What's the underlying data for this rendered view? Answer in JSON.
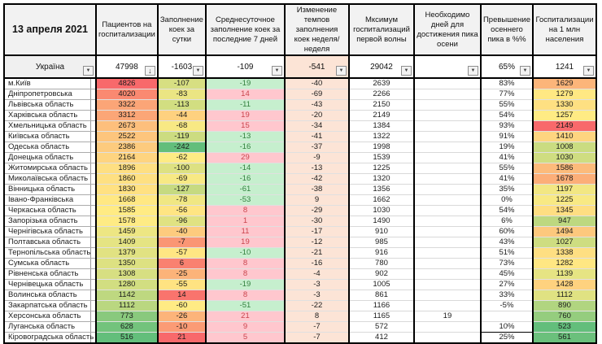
{
  "table": {
    "date_title": "13 апреля 2021",
    "headers": [
      "Пациентов на госпитализации",
      "Заполнение коек за сутки",
      "Среднесуточное заполнение коек за последние 7 дней",
      "Изменение темпов заполнения коек неделя/неделя",
      "Мксимум госпитализаций первой волны",
      "Необходимо дней для достижения пика осени",
      "Превышение осеннего пика в %%",
      "Госпитализации на 1 млн населения"
    ],
    "ukraine": {
      "name": "Україна",
      "patients": "47998",
      "beds": "-1603",
      "avg7": "-109",
      "week": "-541",
      "max": "29042",
      "days": "",
      "pct": "65%",
      "hosp": "1241"
    },
    "icons": {
      "dropdown": "▼",
      "sort_desc": "↓"
    },
    "colors": {
      "peach": "#FCE4D6",
      "good_bg": "#C6EFCE",
      "good_text": "#33803F",
      "bad_bg": "#FFC7CE",
      "bad_text": "#C9444D",
      "header_bg": "#F2F2F2",
      "scale_green": "#63BE7B",
      "scale_yellow": "#FFEB84",
      "scale_red": "#F8696B"
    },
    "rows": [
      {
        "name": "м.Київ",
        "patients": "4826",
        "p_bg": "#F8696B",
        "beds": "-107",
        "b_bg": "#D7DF82",
        "avg7": "-19",
        "week": "-40",
        "max": "2639",
        "days": "",
        "pct": "83%",
        "hosp": "1629",
        "h_bg": "#FCB57A"
      },
      {
        "name": "Дніпропетровська",
        "patients": "4020",
        "p_bg": "#FA8971",
        "beds": "-83",
        "b_bg": "#EBE583",
        "avg7": "14",
        "week": "-69",
        "max": "2266",
        "days": "",
        "pct": "77%",
        "hosp": "1279",
        "h_bg": "#FFE883"
      },
      {
        "name": "Львівська область",
        "patients": "3322",
        "p_bg": "#FBA577",
        "beds": "-113",
        "b_bg": "#D2DE81",
        "avg7": "-11",
        "week": "-43",
        "max": "2150",
        "days": "",
        "pct": "55%",
        "hosp": "1330",
        "h_bg": "#FEE082"
      },
      {
        "name": "Харківська область",
        "patients": "3312",
        "p_bg": "#FBA677",
        "beds": "-44",
        "b_bg": "#FED17F",
        "avg7": "19",
        "week": "-20",
        "max": "2149",
        "days": "",
        "pct": "54%",
        "hosp": "1257",
        "h_bg": "#FFEB84"
      },
      {
        "name": "Хмельницька область",
        "patients": "2673",
        "p_bg": "#FDBF7C",
        "beds": "-68",
        "b_bg": "#F8E984",
        "avg7": "15",
        "week": "-34",
        "max": "1384",
        "days": "",
        "pct": "93%",
        "hosp": "2149",
        "h_bg": "#F8696B"
      },
      {
        "name": "Київська область",
        "patients": "2522",
        "p_bg": "#FDC57D",
        "beds": "-119",
        "b_bg": "#CCDC81",
        "avg7": "-13",
        "week": "-41",
        "max": "1322",
        "days": "",
        "pct": "91%",
        "hosp": "1410",
        "h_bg": "#FED580"
      },
      {
        "name": "Одеська область",
        "patients": "2386",
        "p_bg": "#FDCB7E",
        "beds": "-242",
        "b_bg": "#63BE7B",
        "avg7": "-16",
        "week": "-37",
        "max": "1998",
        "days": "",
        "pct": "19%",
        "hosp": "1008",
        "h_bg": "#CADC81"
      },
      {
        "name": "Донецька область",
        "patients": "2164",
        "p_bg": "#FED480",
        "beds": "-62",
        "b_bg": "#FDEB84",
        "avg7": "29",
        "week": "-9",
        "max": "1539",
        "days": "",
        "pct": "41%",
        "hosp": "1030",
        "h_bg": "#CFDD81"
      },
      {
        "name": "Житомирська область",
        "patients": "1896",
        "p_bg": "#FEDF82",
        "beds": "-100",
        "b_bg": "#DDE182",
        "avg7": "-14",
        "week": "-13",
        "max": "1225",
        "days": "",
        "pct": "55%",
        "hosp": "1586",
        "h_bg": "#FCBB7B"
      },
      {
        "name": "Миколаївська область",
        "patients": "1860",
        "p_bg": "#FEE082",
        "beds": "-69",
        "b_bg": "#F7E984",
        "avg7": "-16",
        "week": "-42",
        "max": "1320",
        "days": "",
        "pct": "41%",
        "hosp": "1678",
        "h_bg": "#FCAE78"
      },
      {
        "name": "Вінницька область",
        "patients": "1830",
        "p_bg": "#FFE182",
        "beds": "-127",
        "b_bg": "#C6DA81",
        "avg7": "-61",
        "week": "-38",
        "max": "1356",
        "days": "",
        "pct": "35%",
        "hosp": "1197",
        "h_bg": "#F2E783"
      },
      {
        "name": "Івано-Франківська",
        "patients": "1668",
        "p_bg": "#FFE883",
        "beds": "-78",
        "b_bg": "#F0E783",
        "avg7": "-53",
        "week": "9",
        "max": "1662",
        "days": "",
        "pct": "0%",
        "hosp": "1225",
        "h_bg": "#F8E984"
      },
      {
        "name": "Черкаська область",
        "patients": "1585",
        "p_bg": "#FFEB84",
        "beds": "-56",
        "b_bg": "#FFE583",
        "avg7": "8",
        "week": "-29",
        "max": "1030",
        "days": "",
        "pct": "54%",
        "hosp": "1345",
        "h_bg": "#FEDE82"
      },
      {
        "name": "Запорізька область",
        "patients": "1578",
        "p_bg": "#FEEB84",
        "beds": "-96",
        "b_bg": "#E0E282",
        "avg7": "1",
        "week": "-30",
        "max": "1490",
        "days": "",
        "pct": "6%",
        "hosp": "947",
        "h_bg": "#BDD880"
      },
      {
        "name": "Чернігівська область",
        "patients": "1459",
        "p_bg": "#EDE683",
        "beds": "-40",
        "b_bg": "#FDCB7E",
        "avg7": "11",
        "week": "-17",
        "max": "910",
        "days": "",
        "pct": "60%",
        "hosp": "1494",
        "h_bg": "#FDC87D"
      },
      {
        "name": "Полтавська область",
        "patients": "1409",
        "p_bg": "#E5E483",
        "beds": "-7",
        "b_bg": "#FA9674",
        "avg7": "19",
        "week": "-12",
        "max": "985",
        "days": "",
        "pct": "43%",
        "hosp": "1027",
        "h_bg": "#CEDD81"
      },
      {
        "name": "Тернопільська область",
        "patients": "1379",
        "p_bg": "#E1E282",
        "beds": "-57",
        "b_bg": "#FFE683",
        "avg7": "-10",
        "week": "-21",
        "max": "916",
        "days": "",
        "pct": "51%",
        "hosp": "1338",
        "h_bg": "#FEDF82"
      },
      {
        "name": "Сумська область",
        "patients": "1350",
        "p_bg": "#DDE182",
        "beds": "6",
        "b_bg": "#F98170",
        "avg7": "8",
        "week": "-16",
        "max": "780",
        "days": "",
        "pct": "73%",
        "hosp": "1282",
        "h_bg": "#FFE783"
      },
      {
        "name": "Рівненська область",
        "patients": "1308",
        "p_bg": "#D7DF82",
        "beds": "-25",
        "b_bg": "#FCB379",
        "avg7": "8",
        "week": "-4",
        "max": "902",
        "days": "",
        "pct": "45%",
        "hosp": "1139",
        "h_bg": "#E6E483"
      },
      {
        "name": "Чернівецька область",
        "patients": "1280",
        "p_bg": "#D2DE81",
        "beds": "-55",
        "b_bg": "#FFE382",
        "avg7": "-19",
        "week": "-3",
        "max": "1005",
        "days": "",
        "pct": "27%",
        "hosp": "1428",
        "h_bg": "#FED27F"
      },
      {
        "name": "Волинська область",
        "patients": "1142",
        "p_bg": "#BED880",
        "beds": "14",
        "b_bg": "#F9746D",
        "avg7": "8",
        "week": "-3",
        "max": "861",
        "days": "",
        "pct": "33%",
        "hosp": "1112",
        "h_bg": "#E0E282"
      },
      {
        "name": "Закарпатська область",
        "patients": "1112",
        "p_bg": "#BAD780",
        "beds": "-60",
        "b_bg": "#FFEB84",
        "avg7": "-51",
        "week": "-22",
        "max": "1166",
        "days": "",
        "pct": "-5%",
        "hosp": "890",
        "h_bg": "#B1D580"
      },
      {
        "name": "Херсонська область",
        "patients": "773",
        "p_bg": "#89C97D",
        "beds": "-26",
        "b_bg": "#FCB47A",
        "avg7": "21",
        "week": "8",
        "max": "1165",
        "days": "19",
        "pct": "",
        "hosp": "760",
        "h_bg": "#95CD7E"
      },
      {
        "name": "Луганська область",
        "patients": "628",
        "p_bg": "#73C37C",
        "beds": "-10",
        "b_bg": "#FB9B75",
        "avg7": "9",
        "week": "-7",
        "max": "572",
        "days": "",
        "pct": "10%",
        "pct_boxed": true,
        "hosp": "523",
        "h_bg": "#63BE7B"
      },
      {
        "name": "Кіровоградська область",
        "patients": "516",
        "p_bg": "#63BE7B",
        "beds": "21",
        "b_bg": "#F8696B",
        "avg7": "5",
        "week": "-7",
        "max": "412",
        "days": "",
        "pct": "25%",
        "pct_boxed": true,
        "hosp": "561",
        "h_bg": "#6BC07C"
      }
    ]
  }
}
